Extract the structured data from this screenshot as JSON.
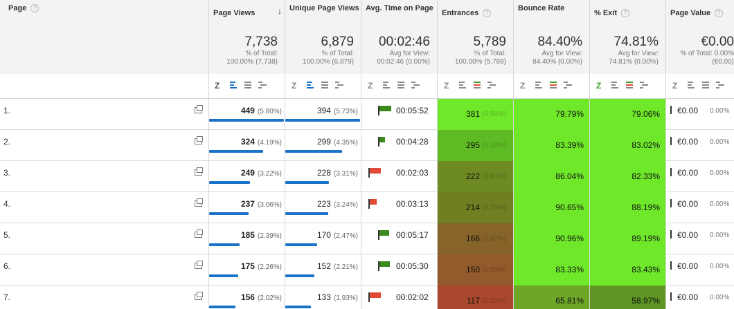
{
  "headers": {
    "page": "Page",
    "page_views": "Page Views",
    "unique_page_views": "Unique Page Views",
    "avg_time": "Avg. Time on Page",
    "entrances": "Entrances",
    "bounce_rate": "Bounce Rate",
    "exit": "% Exit",
    "page_value": "Page Value"
  },
  "totals": {
    "page_views": {
      "big": "7,738",
      "l1": "% of Total:",
      "l2": "100.00% (7,738)"
    },
    "unique_page_views": {
      "big": "6,879",
      "l1": "% of Total:",
      "l2": "100.00% (6,879)"
    },
    "avg_time": {
      "big": "00:02:46",
      "l1": "Avg for View:",
      "l2": "00:02:46 (0.00%)"
    },
    "entrances": {
      "big": "5,789",
      "l1": "% of Total:",
      "l2": "100.00% (5,789)"
    },
    "bounce_rate": {
      "big": "84.40%",
      "l1": "Avg for View:",
      "l2": "84.40% (0.00%)"
    },
    "exit": {
      "big": "74.81%",
      "l1": "Avg for View:",
      "l2": "74.81% (0.00%)"
    },
    "page_value": {
      "big": "€0.00",
      "l1": "% of Total: 0.00%",
      "l2": "(€0.00)"
    }
  },
  "rows": [
    {
      "num": "1.",
      "pv": "449",
      "pv_pct": "(5.80%)",
      "pv_frac": 1.0,
      "upv": "394",
      "upv_pct": "(5.73%)",
      "upv_frac": 1.0,
      "time": "00:05:52",
      "time_flag": "green",
      "time_flag_level": 0.9,
      "ent": "381",
      "ent_pct": "(6.58%)",
      "ent_color": "#6fe82a",
      "bounce": "79.79%",
      "bounce_color": "#6fe82a",
      "exit": "79.06%",
      "exit_color": "#6fe82a",
      "pval": "€0.00",
      "pval_pct": "0.00%"
    },
    {
      "num": "2.",
      "pv": "324",
      "pv_pct": "(4.19%)",
      "pv_frac": 0.72,
      "upv": "299",
      "upv_pct": "(4.35%)",
      "upv_frac": 0.76,
      "time": "00:04:28",
      "time_flag": "green",
      "time_flag_level": 0.3,
      "ent": "295",
      "ent_pct": "(5.10%)",
      "ent_color": "#5fbb24",
      "bounce": "83.39%",
      "bounce_color": "#6fe82a",
      "exit": "83.02%",
      "exit_color": "#6fe82a",
      "pval": "€0.00",
      "pval_pct": "0.00%"
    },
    {
      "num": "3.",
      "pv": "249",
      "pv_pct": "(3.22%)",
      "pv_frac": 0.55,
      "upv": "228",
      "upv_pct": "(3.31%)",
      "upv_frac": 0.58,
      "time": "00:02:03",
      "time_flag": "red",
      "time_flag_level": 0.85,
      "ent": "222",
      "ent_pct": "(3.83%)",
      "ent_color": "#6e8a22",
      "bounce": "86.04%",
      "bounce_color": "#6fe82a",
      "exit": "82.33%",
      "exit_color": "#6fe82a",
      "pval": "€0.00",
      "pval_pct": "0.00%"
    },
    {
      "num": "4.",
      "pv": "237",
      "pv_pct": "(3.06%)",
      "pv_frac": 0.53,
      "upv": "223",
      "upv_pct": "(3.24%)",
      "upv_frac": 0.57,
      "time": "00:03:13",
      "time_flag": "red",
      "time_flag_level": 0.4,
      "ent": "214",
      "ent_pct": "(3.70%)",
      "ent_color": "#6f7f22",
      "bounce": "90.65%",
      "bounce_color": "#6fe82a",
      "exit": "88.19%",
      "exit_color": "#6fe82a",
      "pval": "€0.00",
      "pval_pct": "0.00%"
    },
    {
      "num": "5.",
      "pv": "185",
      "pv_pct": "(2.39%)",
      "pv_frac": 0.41,
      "upv": "170",
      "upv_pct": "(2.47%)",
      "upv_frac": 0.43,
      "time": "00:05:17",
      "time_flag": "green",
      "time_flag_level": 0.7,
      "ent": "166",
      "ent_pct": "(2.87%)",
      "ent_color": "#86642a",
      "bounce": "90.96%",
      "bounce_color": "#6fe82a",
      "exit": "89.19%",
      "exit_color": "#6fe82a",
      "pval": "€0.00",
      "pval_pct": "0.00%"
    },
    {
      "num": "6.",
      "pv": "175",
      "pv_pct": "(2.26%)",
      "pv_frac": 0.39,
      "upv": "152",
      "upv_pct": "(2.21%)",
      "upv_frac": 0.39,
      "time": "00:05:30",
      "time_flag": "green",
      "time_flag_level": 0.8,
      "ent": "150",
      "ent_pct": "(2.59%)",
      "ent_color": "#935a2c",
      "bounce": "83.33%",
      "bounce_color": "#6fe82a",
      "exit": "83.43%",
      "exit_color": "#6fe82a",
      "pval": "€0.00",
      "pval_pct": "0.00%"
    },
    {
      "num": "7.",
      "pv": "156",
      "pv_pct": "(2.02%)",
      "pv_frac": 0.35,
      "upv": "133",
      "upv_pct": "(1.93%)",
      "upv_frac": 0.34,
      "time": "00:02:02",
      "time_flag": "red",
      "time_flag_level": 0.85,
      "ent": "117",
      "ent_pct": "(2.02%)",
      "ent_color": "#a9482c",
      "bounce": "65.81%",
      "bounce_color": "#6ea628",
      "exit": "58.97%",
      "exit_color": "#5e9524",
      "pval": "€0.00",
      "pval_pct": "0.00%"
    }
  ]
}
